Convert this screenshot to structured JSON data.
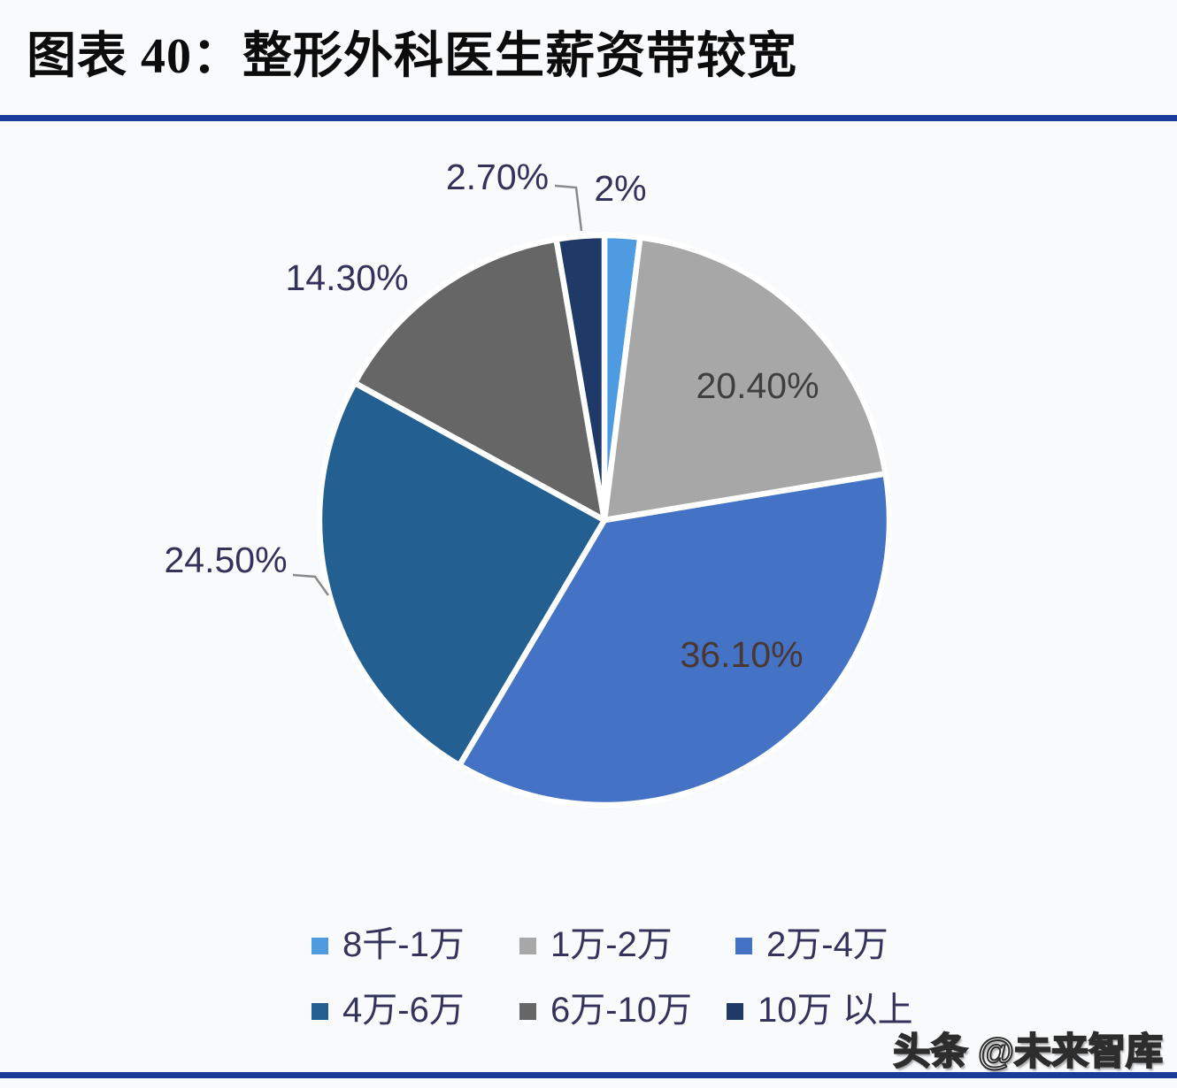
{
  "page": {
    "title": "图表 40：整形外科医生薪资带较宽",
    "watermark": "头条 @未来智库",
    "accent_rule_color": "#1b3b9b"
  },
  "chart_data": {
    "type": "pie",
    "title": "整形外科医生薪资带较宽",
    "categories": [
      "8千-1万",
      "1万-2万",
      "2万-4万",
      "4万-6万",
      "6万-10万",
      "10万 以上"
    ],
    "values": [
      2.0,
      20.4,
      36.1,
      24.5,
      14.3,
      2.7
    ],
    "point_labels": [
      "2%",
      "20.40%",
      "36.10%",
      "24.50%",
      "14.30%",
      "2.70%"
    ],
    "colors": [
      "#4e9be2",
      "#a7a7a7",
      "#4472c4",
      "#235f90",
      "#666666",
      "#1f3a66"
    ],
    "start_angle_deg": 0,
    "direction": "clockwise",
    "slice_border_color": "#ffffff",
    "leader_line_color": "#8a8a8a",
    "legend_position": "bottom",
    "legend_rows": [
      [
        "8千-1万",
        "1万-2万",
        "2万-4万"
      ],
      [
        "4万-6万",
        "6万-10万",
        "10万 以上"
      ]
    ]
  }
}
